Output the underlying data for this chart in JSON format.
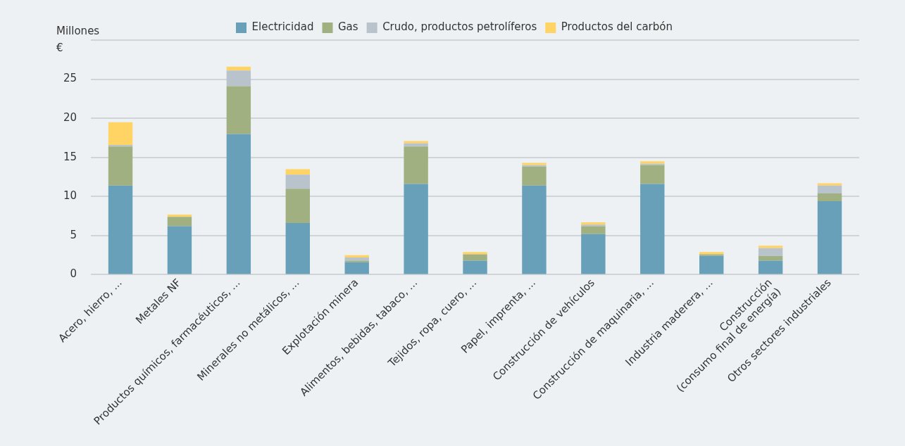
{
  "chart_data": {
    "type": "bar",
    "stacked": true,
    "ylabel": "Millones\n€",
    "categories": [
      "Acero, hierro, ...",
      "Metales NF",
      "Productos químicos, farmacéuticos, ...",
      "Minerales no metálicos, ...",
      "Explotación minera",
      "Alimentos, bebidas, tabaco, ...",
      "Tejidos, ropa, cuero, ...",
      "Papel, imprenta, ...",
      "Construcción de vehículos",
      "Construcción de maquinaria, ...",
      "Industria maderera, ...",
      "Construcción\n(consumo final de energía)",
      "Otros sectores industriales"
    ],
    "series": [
      {
        "name": "Electricidad",
        "color": "#67a0b8",
        "values": [
          11.4,
          6.2,
          18.0,
          6.6,
          1.6,
          11.6,
          1.8,
          11.4,
          5.2,
          11.6,
          2.4,
          1.8,
          9.4
        ]
      },
      {
        "name": "Gas",
        "color": "#a1b080",
        "values": [
          5.0,
          1.2,
          6.1,
          4.4,
          0.2,
          4.8,
          0.8,
          2.4,
          1.0,
          2.4,
          0.2,
          0.6,
          1.0
        ]
      },
      {
        "name": "Crudo, productos petrolíferos",
        "color": "#b8c3cc",
        "values": [
          0.2,
          0,
          2.0,
          1.8,
          0.4,
          0.4,
          0,
          0.2,
          0.2,
          0.2,
          0,
          1.0,
          1.0
        ]
      },
      {
        "name": "Productos del carbón",
        "color": "#ffd464",
        "values": [
          2.9,
          0.3,
          0.5,
          0.7,
          0.3,
          0.3,
          0.3,
          0.3,
          0.3,
          0.3,
          0.3,
          0.3,
          0.3
        ]
      }
    ],
    "ylim": [
      0,
      30
    ],
    "yticks": [
      0,
      5,
      10,
      15,
      20,
      25,
      {
        "value": 30,
        "label": null
      }
    ],
    "grid": "y",
    "legend": "top"
  }
}
